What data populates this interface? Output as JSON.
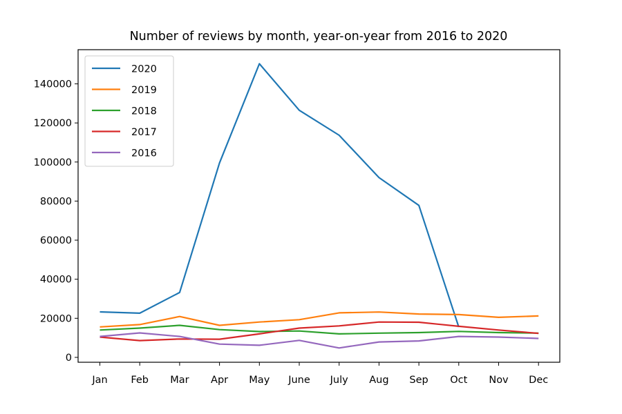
{
  "chart_data": {
    "type": "line",
    "title": "Number of reviews by month, year-on-year from 2016 to 2020",
    "xlabel": "",
    "ylabel": "",
    "categories": [
      "Jan",
      "Feb",
      "Mar",
      "Apr",
      "May",
      "June",
      "July",
      "Aug",
      "Sep",
      "Oct",
      "Nov",
      "Dec"
    ],
    "ylim": [
      -2500,
      157500
    ],
    "yticks": [
      0,
      20000,
      40000,
      60000,
      80000,
      100000,
      120000,
      140000
    ],
    "ytick_labels": [
      "0",
      "20000",
      "40000",
      "60000",
      "80000",
      "100000",
      "120000",
      "140000"
    ],
    "grid": false,
    "legend_position": "top-left",
    "series": [
      {
        "name": "2020",
        "color": "#1f77b4",
        "values": [
          23300,
          22600,
          33200,
          99500,
          150300,
          126500,
          113700,
          92000,
          77800,
          15500,
          null,
          null
        ]
      },
      {
        "name": "2019",
        "color": "#ff7f0e",
        "values": [
          15600,
          16800,
          20900,
          16400,
          18100,
          19300,
          22800,
          23200,
          22200,
          21900,
          20500,
          21200
        ]
      },
      {
        "name": "2018",
        "color": "#2ca02c",
        "values": [
          14000,
          15000,
          16400,
          14200,
          13200,
          13500,
          12000,
          12400,
          12700,
          13300,
          12700,
          12400
        ]
      },
      {
        "name": "2017",
        "color": "#d62728",
        "values": [
          10400,
          8600,
          9400,
          9300,
          12000,
          15000,
          16100,
          18100,
          18000,
          15900,
          14000,
          12300
        ]
      },
      {
        "name": "2016",
        "color": "#9467bd",
        "values": [
          10700,
          12500,
          10700,
          6800,
          6200,
          8700,
          4800,
          7900,
          8400,
          10700,
          10400,
          9700
        ]
      }
    ]
  }
}
